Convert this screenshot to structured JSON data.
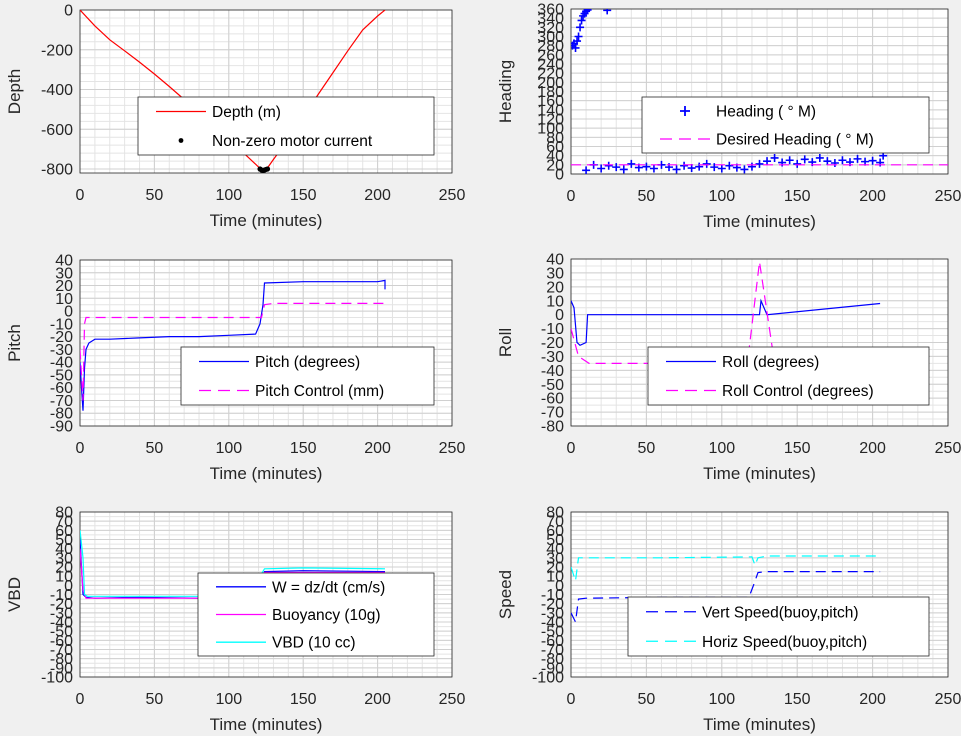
{
  "chart_data": [
    {
      "type": "line",
      "ylabel": "Depth",
      "xlabel": "Time (minutes)",
      "xlim": [
        0,
        250
      ],
      "ylim": [
        -820,
        0
      ],
      "xticks": [
        "0",
        "50",
        "100",
        "150",
        "200",
        "250"
      ],
      "yticks": [
        "0",
        "-200",
        "-400",
        "-600",
        "-800"
      ],
      "grid": true,
      "legend": "lower-right",
      "series": [
        {
          "name": "Depth (m)",
          "style": "line",
          "color": "#ff0000",
          "x": [
            0,
            10,
            20,
            30,
            40,
            50,
            60,
            70,
            80,
            90,
            100,
            110,
            120,
            122,
            125,
            130,
            140,
            150,
            160,
            170,
            180,
            190,
            200,
            205
          ],
          "y": [
            0,
            -80,
            -150,
            -205,
            -262,
            -322,
            -385,
            -450,
            -515,
            -583,
            -650,
            -720,
            -790,
            -805,
            -805,
            -752,
            -650,
            -540,
            -425,
            -315,
            -205,
            -100,
            -30,
            0
          ]
        },
        {
          "name": "Non-zero motor current",
          "style": "dots",
          "color": "#000000",
          "x": [
            121,
            122,
            123,
            124,
            125,
            126
          ],
          "y": [
            -800,
            -805,
            -808,
            -805,
            -802,
            -800
          ]
        }
      ]
    },
    {
      "type": "scatter",
      "ylabel": "Heading",
      "xlabel": "Time (minutes)",
      "xlim": [
        0,
        250
      ],
      "ylim": [
        0,
        360
      ],
      "xticks": [
        "0",
        "50",
        "100",
        "150",
        "200",
        "250"
      ],
      "yticks": [
        "0",
        "20",
        "40",
        "60",
        "80",
        "100",
        "120",
        "140",
        "160",
        "180",
        "200",
        "220",
        "240",
        "260",
        "280",
        "300",
        "320",
        "340",
        "360"
      ],
      "grid": true,
      "legend": "right",
      "series": [
        {
          "name": "Heading (  ° M)",
          "style": "plus",
          "color": "#0000ff",
          "x": [
            1,
            2,
            3,
            4,
            5,
            6,
            7,
            8,
            9,
            10,
            11,
            24,
            10,
            15,
            20,
            25,
            30,
            35,
            40,
            45,
            50,
            55,
            60,
            65,
            70,
            75,
            80,
            85,
            90,
            95,
            100,
            105,
            110,
            115,
            120,
            125,
            130,
            135,
            140,
            145,
            150,
            155,
            160,
            165,
            170,
            175,
            180,
            185,
            190,
            195,
            200,
            205,
            207
          ],
          "y": [
            280,
            285,
            275,
            290,
            300,
            320,
            335,
            345,
            350,
            355,
            358,
            357,
            8,
            20,
            12,
            18,
            15,
            10,
            22,
            14,
            16,
            12,
            20,
            15,
            10,
            18,
            13,
            16,
            22,
            15,
            12,
            18,
            14,
            10,
            16,
            22,
            28,
            35,
            25,
            30,
            22,
            32,
            26,
            35,
            28,
            24,
            30,
            26,
            33,
            27,
            29,
            25,
            40
          ]
        },
        {
          "name": "Desired Heading (     ° M)",
          "style": "dashed",
          "color": "#ff00ff",
          "x": [
            0,
            250
          ],
          "y": [
            20,
            20
          ]
        }
      ]
    },
    {
      "type": "line",
      "ylabel": "Pitch",
      "xlabel": "Time (minutes)",
      "xlim": [
        0,
        250
      ],
      "ylim": [
        -90,
        40
      ],
      "xticks": [
        "0",
        "50",
        "100",
        "150",
        "200",
        "250"
      ],
      "yticks": [
        "40",
        "30",
        "20",
        "10",
        "0",
        "-10",
        "-20",
        "-30",
        "-40",
        "-50",
        "-60",
        "-70",
        "-80",
        "-90"
      ],
      "grid": true,
      "legend": "lower-right",
      "series": [
        {
          "name": "Pitch (degrees)",
          "style": "line",
          "color": "#0000ff",
          "x": [
            0,
            1,
            2,
            3,
            4,
            6,
            10,
            20,
            40,
            60,
            80,
            100,
            118,
            121,
            123,
            124,
            150,
            180,
            200,
            205,
            205
          ],
          "y": [
            -40,
            -60,
            -78,
            -45,
            -30,
            -25,
            -22,
            -22,
            -21,
            -20,
            -20,
            -19,
            -18,
            -10,
            5,
            22,
            23,
            23,
            23,
            24,
            17
          ]
        },
        {
          "name": "Pitch Control (mm)",
          "style": "dashed",
          "color": "#ff00ff",
          "x": [
            0,
            2,
            3,
            4,
            120,
            122,
            124,
            130,
            205
          ],
          "y": [
            -30,
            -70,
            -10,
            -5,
            -5,
            -5,
            5,
            6,
            6
          ]
        }
      ]
    },
    {
      "type": "line",
      "ylabel": "Roll",
      "xlabel": "Time (minutes)",
      "xlim": [
        0,
        250
      ],
      "ylim": [
        -80,
        40
      ],
      "xticks": [
        "0",
        "50",
        "100",
        "150",
        "200",
        "250"
      ],
      "yticks": [
        "40",
        "30",
        "20",
        "10",
        "0",
        "-10",
        "-20",
        "-30",
        "-40",
        "-50",
        "-60",
        "-70",
        "-80"
      ],
      "grid": true,
      "legend": "lower-right",
      "series": [
        {
          "name": "Roll (degrees)",
          "style": "line",
          "color": "#0000ff",
          "x": [
            0,
            2,
            4,
            6,
            10,
            11,
            125,
            126,
            130,
            205
          ],
          "y": [
            10,
            5,
            -20,
            -22,
            -20,
            0,
            0,
            10,
            0,
            8
          ]
        },
        {
          "name": "Roll Control (degrees)",
          "style": "dashed",
          "color": "#ff00ff",
          "x": [
            0,
            5,
            12,
            24,
            35,
            47,
            58,
            70,
            82,
            93,
            105,
            117,
            125,
            135,
            145,
            155,
            165,
            175,
            185,
            195,
            205
          ],
          "y": [
            -10,
            -30,
            -35,
            -35,
            -35,
            -35,
            -35,
            -35,
            -35,
            -35,
            -35,
            -35,
            38,
            -35,
            -35,
            -35,
            -35,
            -35,
            -35,
            -35,
            -35
          ]
        }
      ]
    },
    {
      "type": "line",
      "ylabel": "VBD",
      "xlabel": "Time (minutes)",
      "xlim": [
        0,
        250
      ],
      "ylim": [
        -100,
        80
      ],
      "xticks": [
        "0",
        "50",
        "100",
        "150",
        "200",
        "250"
      ],
      "yticks": [
        "80",
        "70",
        "60",
        "50",
        "40",
        "30",
        "20",
        "10",
        "0",
        "-10",
        "-20",
        "-30",
        "-40",
        "-50",
        "-60",
        "-70",
        "-80",
        "-90",
        "-100"
      ],
      "grid": true,
      "legend": "lower-right",
      "series": [
        {
          "name": "W = dz/dt (cm/s)",
          "style": "line",
          "color": "#0000ff",
          "x": [
            0,
            2,
            4,
            10,
            40,
            80,
            118,
            122,
            124,
            150,
            205
          ],
          "y": [
            50,
            -10,
            -13,
            -14,
            -13,
            -14,
            -13,
            5,
            15,
            16,
            15
          ]
        },
        {
          "name": "Buoyancy (10g)",
          "style": "line",
          "color": "#ff00ff",
          "x": [
            0,
            2,
            4,
            118,
            122,
            124,
            205
          ],
          "y": [
            40,
            -5,
            -14,
            -14,
            0,
            14,
            14
          ]
        },
        {
          "name": "VBD (10 cc)",
          "style": "line",
          "color": "#00ffff",
          "x": [
            0,
            2,
            3,
            5,
            118,
            121,
            124,
            150,
            205
          ],
          "y": [
            60,
            30,
            -10,
            -12,
            -12,
            10,
            18,
            19,
            18
          ]
        }
      ]
    },
    {
      "type": "line",
      "ylabel": "Speed",
      "xlabel": "Time (minutes)",
      "xlim": [
        0,
        250
      ],
      "ylim": [
        -100,
        80
      ],
      "xticks": [
        "0",
        "50",
        "100",
        "150",
        "200",
        "250"
      ],
      "yticks": [
        "80",
        "70",
        "60",
        "50",
        "40",
        "30",
        "20",
        "10",
        "0",
        "-10",
        "-20",
        "-30",
        "-40",
        "-50",
        "-60",
        "-70",
        "-80",
        "-90",
        "-100"
      ],
      "grid": true,
      "legend": "lower-right",
      "series": [
        {
          "name": "Vert Speed(buoy,pitch)",
          "style": "dashed",
          "color": "#0000ff",
          "x": [
            0,
            3,
            5,
            10,
            60,
            118,
            121,
            124,
            130,
            205
          ],
          "y": [
            -30,
            -40,
            -15,
            -14,
            -13,
            -13,
            0,
            14,
            15,
            15
          ]
        },
        {
          "name": "Horiz Speed(buoy,pitch)",
          "style": "dashed",
          "color": "#00ffff",
          "x": [
            0,
            3,
            5,
            60,
            120,
            122,
            124,
            130,
            205
          ],
          "y": [
            20,
            5,
            30,
            30,
            31,
            22,
            30,
            32,
            32
          ]
        }
      ]
    }
  ]
}
